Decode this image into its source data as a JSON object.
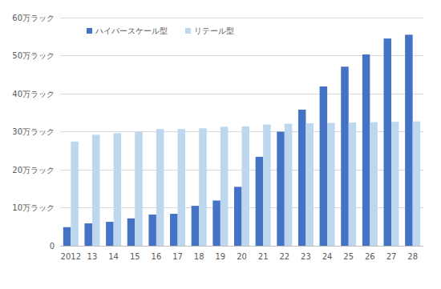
{
  "chart_data": {
    "type": "bar",
    "categories": [
      "2012",
      "13",
      "14",
      "15",
      "16",
      "17",
      "18",
      "19",
      "20",
      "21",
      "22",
      "23",
      "24",
      "25",
      "26",
      "27",
      "28"
    ],
    "series": [
      {
        "name": "ハイパースケール型",
        "color": "#4472c4",
        "values": [
          4.9,
          5.9,
          6.3,
          7.2,
          8.2,
          8.4,
          10.5,
          11.9,
          15.5,
          23.4,
          30.0,
          35.8,
          41.9,
          47.1,
          50.3,
          54.5,
          55.5
        ]
      },
      {
        "name": "リテール型",
        "color": "#bdd7ee",
        "values": [
          27.4,
          29.2,
          29.6,
          30.0,
          30.7,
          30.7,
          30.9,
          31.3,
          31.4,
          31.9,
          32.1,
          32.2,
          32.3,
          32.4,
          32.5,
          32.6,
          32.7
        ]
      }
    ],
    "ylim": [
      0,
      60
    ],
    "yticks": [
      0,
      {
        "value": 10,
        "label": "10万ラック"
      },
      {
        "value": 20,
        "label": "20万ラック"
      },
      {
        "value": 30,
        "label": "30万ラック"
      },
      {
        "value": 40,
        "label": "40万ラック"
      },
      {
        "value": 50,
        "label": "50万ラック"
      },
      {
        "value": 60,
        "label": "60万ラック"
      }
    ],
    "grid": true,
    "legend": "top-left"
  }
}
